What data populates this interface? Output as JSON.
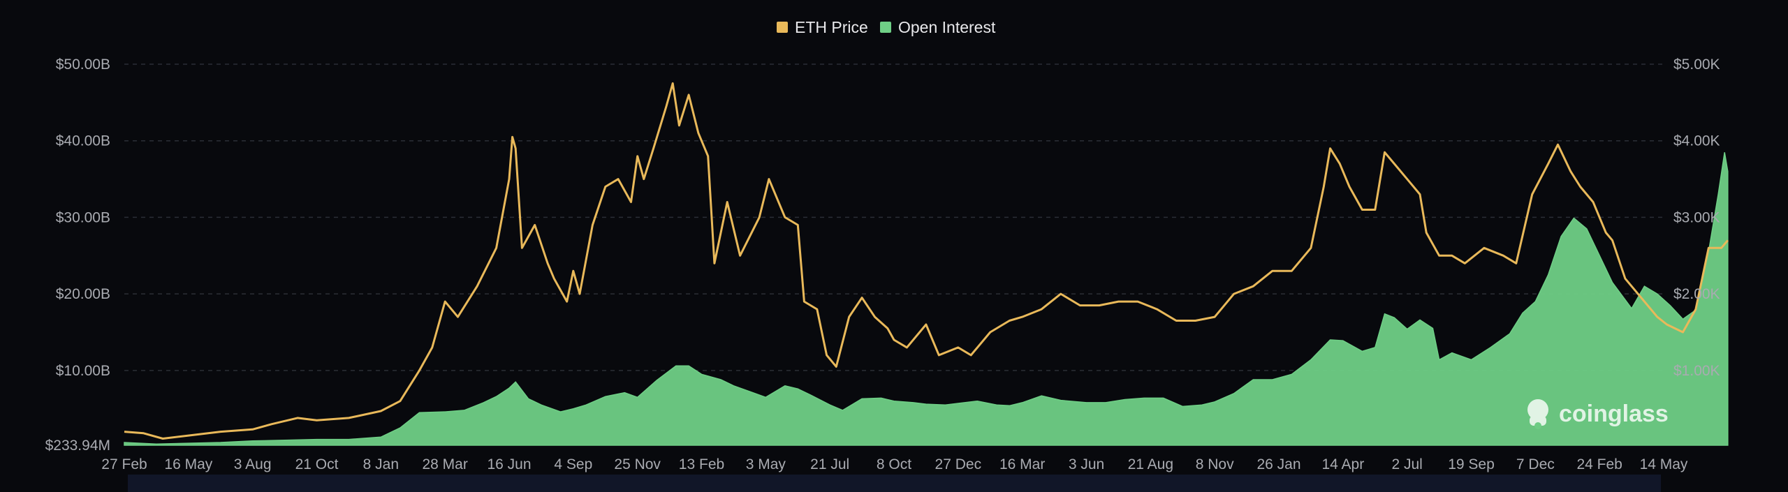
{
  "legend": {
    "price_label": "ETH Price",
    "oi_label": "Open Interest"
  },
  "watermark": "coinglass",
  "colors": {
    "background": "#08090d",
    "price": "#e9b95a",
    "open_interest": "#6fcf86",
    "grid": "#2b2e36",
    "tick_text": "#a9abb1",
    "scrollbar": "#111628"
  },
  "chart_data": {
    "type": "area",
    "x_ticks": [
      "27 Feb",
      "16 May",
      "3 Aug",
      "21 Oct",
      "8 Jan",
      "28 Mar",
      "16 Jun",
      "4 Sep",
      "25 Nov",
      "13 Feb",
      "3 May",
      "21 Jul",
      "8 Oct",
      "27 Dec",
      "16 Mar",
      "3 Jun",
      "21 Aug",
      "8 Nov",
      "26 Jan",
      "14 Apr",
      "2 Jul",
      "19 Sep",
      "7 Dec",
      "24 Feb",
      "14 May"
    ],
    "y_left": {
      "ticks": [
        "$233.94M",
        "$10.00B",
        "$20.00B",
        "$30.00B",
        "$40.00B",
        "$50.00B"
      ],
      "tick_values": [
        0.23394,
        10,
        20,
        30,
        40,
        50
      ],
      "range": [
        0.23394,
        50
      ],
      "unit": "B"
    },
    "y_right": {
      "ticks": [
        "$1.00K",
        "$2.00K",
        "$3.00K",
        "$4.00K",
        "$5.00K"
      ],
      "tick_values": [
        1000,
        2000,
        3000,
        4000,
        5000
      ],
      "range": [
        23.394,
        5000
      ]
    },
    "grid": true,
    "legend_position": "top-center",
    "series": [
      {
        "name": "ETH Price",
        "axis": "right",
        "style": "line",
        "points": [
          [
            0,
            200
          ],
          [
            0.3,
            180
          ],
          [
            0.6,
            110
          ],
          [
            1,
            150
          ],
          [
            1.5,
            200
          ],
          [
            2,
            230
          ],
          [
            2.3,
            300
          ],
          [
            2.7,
            380
          ],
          [
            3,
            350
          ],
          [
            3.5,
            380
          ],
          [
            4,
            470
          ],
          [
            4.3,
            600
          ],
          [
            4.6,
            1000
          ],
          [
            4.8,
            1300
          ],
          [
            5,
            1900
          ],
          [
            5.2,
            1700
          ],
          [
            5.5,
            2100
          ],
          [
            5.8,
            2600
          ],
          [
            6.0,
            3500
          ],
          [
            6.05,
            4050
          ],
          [
            6.1,
            3900
          ],
          [
            6.2,
            2600
          ],
          [
            6.4,
            2900
          ],
          [
            6.6,
            2400
          ],
          [
            6.7,
            2200
          ],
          [
            6.9,
            1900
          ],
          [
            7.0,
            2300
          ],
          [
            7.1,
            2000
          ],
          [
            7.3,
            2900
          ],
          [
            7.5,
            3400
          ],
          [
            7.7,
            3500
          ],
          [
            7.9,
            3200
          ],
          [
            8.0,
            3800
          ],
          [
            8.1,
            3500
          ],
          [
            8.25,
            3900
          ],
          [
            8.45,
            4450
          ],
          [
            8.55,
            4750
          ],
          [
            8.65,
            4200
          ],
          [
            8.8,
            4600
          ],
          [
            8.95,
            4100
          ],
          [
            9.1,
            3800
          ],
          [
            9.2,
            2400
          ],
          [
            9.4,
            3200
          ],
          [
            9.6,
            2500
          ],
          [
            9.9,
            3000
          ],
          [
            10.05,
            3500
          ],
          [
            10.3,
            3000
          ],
          [
            10.5,
            2900
          ],
          [
            10.6,
            1900
          ],
          [
            10.8,
            1800
          ],
          [
            10.95,
            1200
          ],
          [
            11.1,
            1050
          ],
          [
            11.3,
            1700
          ],
          [
            11.5,
            1950
          ],
          [
            11.7,
            1700
          ],
          [
            11.9,
            1550
          ],
          [
            12.0,
            1400
          ],
          [
            12.2,
            1300
          ],
          [
            12.5,
            1600
          ],
          [
            12.7,
            1200
          ],
          [
            13.0,
            1300
          ],
          [
            13.2,
            1200
          ],
          [
            13.5,
            1500
          ],
          [
            13.8,
            1650
          ],
          [
            14.0,
            1700
          ],
          [
            14.3,
            1800
          ],
          [
            14.6,
            2000
          ],
          [
            14.9,
            1850
          ],
          [
            15.2,
            1850
          ],
          [
            15.5,
            1900
          ],
          [
            15.8,
            1900
          ],
          [
            16.1,
            1800
          ],
          [
            16.4,
            1650
          ],
          [
            16.7,
            1650
          ],
          [
            17.0,
            1700
          ],
          [
            17.3,
            2000
          ],
          [
            17.6,
            2100
          ],
          [
            17.9,
            2300
          ],
          [
            18.2,
            2300
          ],
          [
            18.5,
            2600
          ],
          [
            18.7,
            3400
          ],
          [
            18.8,
            3900
          ],
          [
            18.95,
            3700
          ],
          [
            19.1,
            3400
          ],
          [
            19.3,
            3100
          ],
          [
            19.5,
            3100
          ],
          [
            19.65,
            3850
          ],
          [
            19.8,
            3700
          ],
          [
            20.0,
            3500
          ],
          [
            20.2,
            3300
          ],
          [
            20.3,
            2800
          ],
          [
            20.5,
            2500
          ],
          [
            20.7,
            2500
          ],
          [
            20.9,
            2400
          ],
          [
            21.2,
            2600
          ],
          [
            21.5,
            2500
          ],
          [
            21.7,
            2400
          ],
          [
            21.95,
            3300
          ],
          [
            22.2,
            3700
          ],
          [
            22.35,
            3950
          ],
          [
            22.55,
            3600
          ],
          [
            22.7,
            3400
          ],
          [
            22.9,
            3200
          ],
          [
            23.1,
            2800
          ],
          [
            23.2,
            2700
          ],
          [
            23.4,
            2200
          ],
          [
            23.7,
            1900
          ],
          [
            23.9,
            1700
          ],
          [
            24.05,
            1600
          ],
          [
            24.3,
            1500
          ],
          [
            24.5,
            1800
          ],
          [
            24.7,
            2600
          ],
          [
            24.9,
            2600
          ],
          [
            25.0,
            2700
          ]
        ]
      },
      {
        "name": "Open Interest",
        "axis": "left",
        "style": "area",
        "points": [
          [
            0,
            0.6
          ],
          [
            0.5,
            0.4
          ],
          [
            1,
            0.5
          ],
          [
            1.5,
            0.6
          ],
          [
            2,
            0.8
          ],
          [
            2.5,
            0.9
          ],
          [
            3,
            1.0
          ],
          [
            3.5,
            1.0
          ],
          [
            4,
            1.3
          ],
          [
            4.3,
            2.5
          ],
          [
            4.6,
            4.5
          ],
          [
            5,
            4.6
          ],
          [
            5.3,
            4.8
          ],
          [
            5.6,
            5.8
          ],
          [
            5.8,
            6.6
          ],
          [
            6.0,
            7.7
          ],
          [
            6.1,
            8.5
          ],
          [
            6.3,
            6.3
          ],
          [
            6.5,
            5.5
          ],
          [
            6.8,
            4.6
          ],
          [
            7.0,
            5.0
          ],
          [
            7.2,
            5.5
          ],
          [
            7.5,
            6.6
          ],
          [
            7.8,
            7.1
          ],
          [
            8.0,
            6.5
          ],
          [
            8.3,
            8.7
          ],
          [
            8.6,
            10.6
          ],
          [
            8.8,
            10.6
          ],
          [
            9.0,
            9.5
          ],
          [
            9.3,
            8.8
          ],
          [
            9.5,
            8.0
          ],
          [
            9.8,
            7.1
          ],
          [
            10.0,
            6.5
          ],
          [
            10.3,
            8.0
          ],
          [
            10.5,
            7.6
          ],
          [
            10.7,
            6.8
          ],
          [
            11.0,
            5.5
          ],
          [
            11.2,
            4.8
          ],
          [
            11.5,
            6.3
          ],
          [
            11.8,
            6.4
          ],
          [
            12.0,
            6.0
          ],
          [
            12.3,
            5.8
          ],
          [
            12.5,
            5.6
          ],
          [
            12.8,
            5.5
          ],
          [
            13.0,
            5.7
          ],
          [
            13.3,
            6.0
          ],
          [
            13.6,
            5.5
          ],
          [
            13.8,
            5.4
          ],
          [
            14.0,
            5.8
          ],
          [
            14.3,
            6.7
          ],
          [
            14.6,
            6.1
          ],
          [
            15.0,
            5.8
          ],
          [
            15.3,
            5.8
          ],
          [
            15.6,
            6.2
          ],
          [
            15.9,
            6.4
          ],
          [
            16.2,
            6.4
          ],
          [
            16.5,
            5.3
          ],
          [
            16.8,
            5.5
          ],
          [
            17.0,
            5.9
          ],
          [
            17.3,
            7.0
          ],
          [
            17.6,
            8.8
          ],
          [
            17.9,
            8.8
          ],
          [
            18.2,
            9.5
          ],
          [
            18.5,
            11.4
          ],
          [
            18.8,
            14.0
          ],
          [
            19.0,
            13.9
          ],
          [
            19.3,
            12.5
          ],
          [
            19.5,
            13.0
          ],
          [
            19.65,
            17.4
          ],
          [
            19.8,
            16.9
          ],
          [
            20.0,
            15.4
          ],
          [
            20.2,
            16.6
          ],
          [
            20.4,
            15.5
          ],
          [
            20.5,
            11.4
          ],
          [
            20.7,
            12.3
          ],
          [
            21.0,
            11.4
          ],
          [
            21.3,
            13.0
          ],
          [
            21.6,
            14.8
          ],
          [
            21.8,
            17.5
          ],
          [
            22.0,
            19.0
          ],
          [
            22.2,
            22.5
          ],
          [
            22.4,
            27.5
          ],
          [
            22.6,
            29.9
          ],
          [
            22.8,
            28.5
          ],
          [
            23.0,
            25.0
          ],
          [
            23.2,
            21.5
          ],
          [
            23.5,
            18.1
          ],
          [
            23.7,
            21.0
          ],
          [
            23.9,
            20.0
          ],
          [
            24.1,
            18.5
          ],
          [
            24.3,
            16.7
          ],
          [
            24.5,
            17.9
          ],
          [
            24.7,
            25.5
          ],
          [
            24.85,
            33.0
          ],
          [
            24.95,
            38.5
          ],
          [
            25.0,
            36.0
          ]
        ]
      }
    ]
  }
}
